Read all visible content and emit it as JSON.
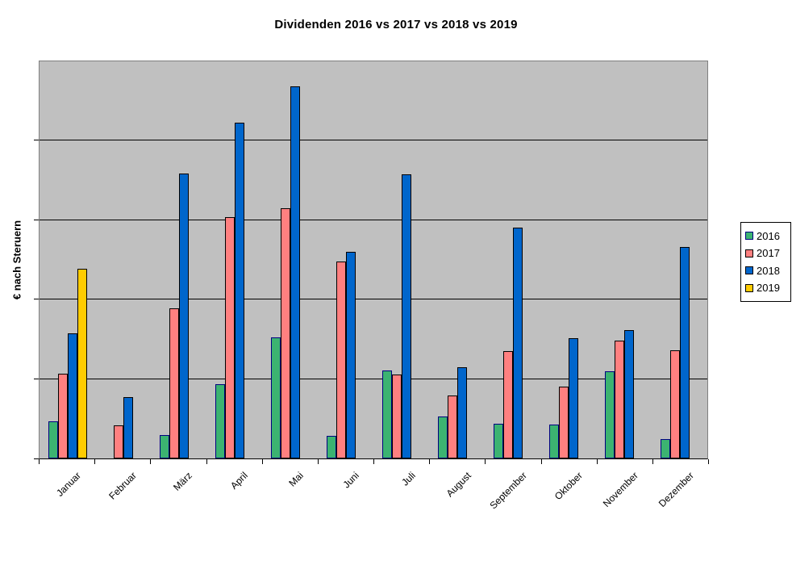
{
  "header": {
    "title": "Dividenden 2016 vs 2017 vs 2018 vs 2019"
  },
  "axes": {
    "y_label": "€ nach Steruern",
    "y_tick_labels_visible": false
  },
  "legend": {
    "position": "right",
    "entries": [
      "2016",
      "2017",
      "2018",
      "2019"
    ]
  },
  "colors": {
    "plot_background": "#C0C0C0",
    "plot_border": "#7F7F7F",
    "gridline": "#000000",
    "axis": "#000000",
    "series_2016": "#3CB371",
    "series_2017": "#FF8080",
    "series_2018": "#0066CC",
    "series_2019": "#FFCC00"
  },
  "chart_data": {
    "type": "bar",
    "title": "Dividenden 2016 vs 2017 vs 2018 vs 2019",
    "xlabel": "",
    "ylabel": "€ nach Steruern",
    "categories": [
      "Januar",
      "Februar",
      "März",
      "April",
      "Mai",
      "Juni",
      "Juli",
      "August",
      "September",
      "Oktober",
      "November",
      "Dezember"
    ],
    "series": [
      {
        "name": "2016",
        "color": "#3CB371",
        "border": "#000080",
        "values": [
          47,
          null,
          29,
          94,
          152,
          28,
          111,
          53,
          44,
          43,
          110,
          24
        ]
      },
      {
        "name": "2017",
        "color": "#FF8080",
        "border": "#000000",
        "values": [
          107,
          42,
          189,
          304,
          315,
          248,
          106,
          79,
          135,
          90,
          148,
          136
        ]
      },
      {
        "name": "2018",
        "color": "#0066CC",
        "border": "#000000",
        "values": [
          158,
          77,
          359,
          423,
          469,
          260,
          358,
          115,
          291,
          151,
          162,
          266
        ]
      },
      {
        "name": "2019",
        "color": "#FFCC00",
        "border": "#000000",
        "values": [
          239,
          null,
          null,
          null,
          null,
          null,
          null,
          null,
          null,
          null,
          null,
          null
        ]
      }
    ],
    "ylim": [
      0,
      500
    ],
    "y_gridline_step": 100,
    "y_tick_labels": [],
    "grid": true,
    "legend_position": "right",
    "plot_background": "#C0C0C0",
    "note": "y-axis has tick marks but no numeric labels; values estimated on a 0-500 scale (gridline = 100 units)"
  }
}
